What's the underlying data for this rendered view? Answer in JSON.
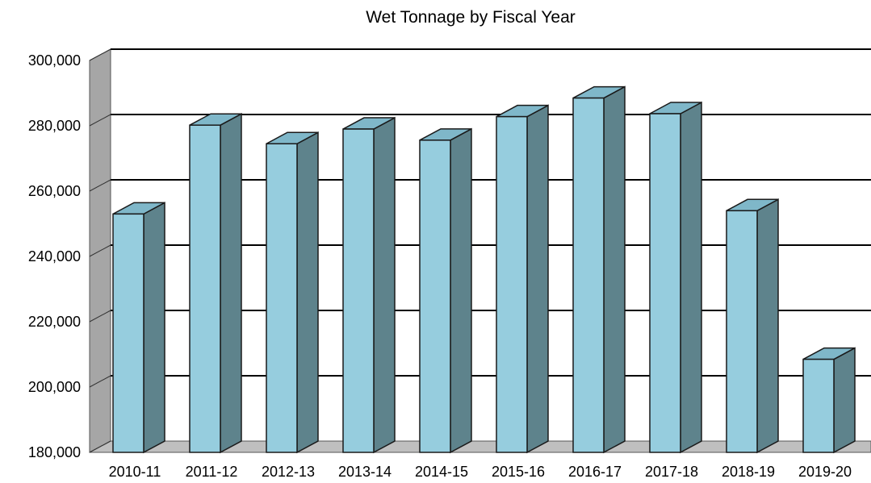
{
  "chart_data": {
    "type": "bar",
    "title": "Wet Tonnage by Fiscal Year",
    "xlabel": "",
    "ylabel": "",
    "categories": [
      "2010-11",
      "2011-12",
      "2012-13",
      "2013-14",
      "2014-15",
      "2015-16",
      "2016-17",
      "2017-18",
      "2018-19",
      "2019-20"
    ],
    "values": [
      253000,
      280200,
      274500,
      279000,
      275600,
      282800,
      288500,
      283700,
      254000,
      208500
    ],
    "ylim": [
      180000,
      300000
    ],
    "yticks": [
      180000,
      200000,
      220000,
      240000,
      260000,
      280000,
      300000
    ],
    "ytick_labels": [
      "180,000",
      "200,000",
      "220,000",
      "240,000",
      "260,000",
      "280,000",
      "300,000"
    ],
    "grid": true,
    "legend": "none",
    "three_d": true,
    "colors": {
      "bar_front": "#96CDDE",
      "bar_side": "#5E838C",
      "bar_top": "#7FB7C9",
      "bar_stroke": "#1a1a1a",
      "back_wall": "#ffffff",
      "side_wall": "#A6A6A6",
      "floor": "#BFBFBF",
      "grid": "#000000"
    }
  }
}
